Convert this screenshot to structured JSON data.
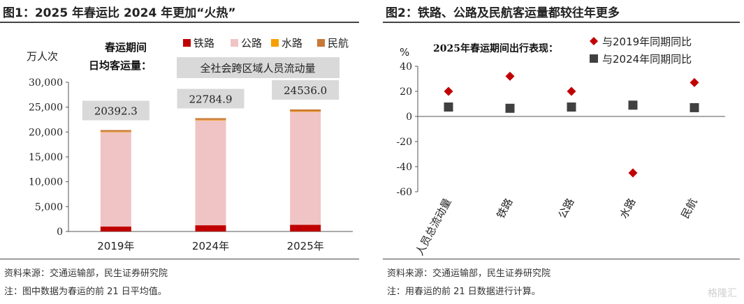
{
  "left": {
    "title": "图1：2025 年春运比 2024 年更加“火热”",
    "source": "资料来源：交通运输部，民生证券研究院",
    "note": "注：图中数据为春运的前 21 日平均值。",
    "unit_label": "万人次",
    "caption_line1": "春运期间",
    "caption_line2": "日均客运量：",
    "annotation": "全社会跨区域人员流动量",
    "totals": [
      "20392.3",
      "22784.9",
      "24536.0"
    ],
    "colors": {
      "railway": "#c00000",
      "road": "#f0c4c4",
      "water": "#f5a000",
      "aviation": "#c87837"
    }
  },
  "right": {
    "title": "图2：铁路、公路及民航客运量都较往年更多",
    "source": "资料来源：交通运输部，民生证券研究院",
    "note": "注：用春运的前 21 日数据进行计算。",
    "unit_label": "%",
    "caption": "2025年春运期间出行表现：",
    "colors": {
      "vs2019": "#c00000",
      "vs2024": "#404040"
    }
  },
  "watermark": "格隆汇",
  "chart_data": [
    {
      "type": "bar",
      "stacked": true,
      "categories": [
        "2019年",
        "2024年",
        "2025年"
      ],
      "series": [
        {
          "name": "铁路",
          "values": [
            1010,
            1250,
            1350
          ]
        },
        {
          "name": "公路",
          "values": [
            18990,
            21120,
            22750
          ]
        },
        {
          "name": "水路",
          "values": [
            80,
            80,
            80
          ]
        },
        {
          "name": "民航",
          "values": [
            312,
            335,
            356
          ]
        }
      ],
      "ylim": [
        0,
        30000
      ],
      "yticks": [
        0,
        5000,
        10000,
        15000,
        20000,
        25000,
        30000
      ],
      "ytick_labels": [
        "0",
        "5,000",
        "10,000",
        "15,000",
        "20,000",
        "25,000",
        "30,000"
      ],
      "legend": "top"
    },
    {
      "type": "scatter",
      "categories": [
        "人员总流动量",
        "铁路",
        "公路",
        "水路",
        "民航"
      ],
      "series": [
        {
          "name": "与2019年同期同比",
          "values": [
            null,
            32,
            20,
            -45,
            27
          ]
        },
        {
          "name": "与2024年同期同比",
          "values": [
            7.5,
            6.5,
            7.5,
            9,
            7
          ]
        }
      ],
      "extra_points": [
        {
          "series": "与2019年同期同比",
          "category": "人员总流动量",
          "value": 20
        }
      ],
      "ylim": [
        -60,
        40
      ],
      "yticks": [
        -60,
        -40,
        -20,
        0,
        20,
        40
      ],
      "ytick_labels": [
        "-60",
        "-40",
        "-20",
        "0",
        "20",
        "40"
      ],
      "legend": "top-right"
    }
  ]
}
